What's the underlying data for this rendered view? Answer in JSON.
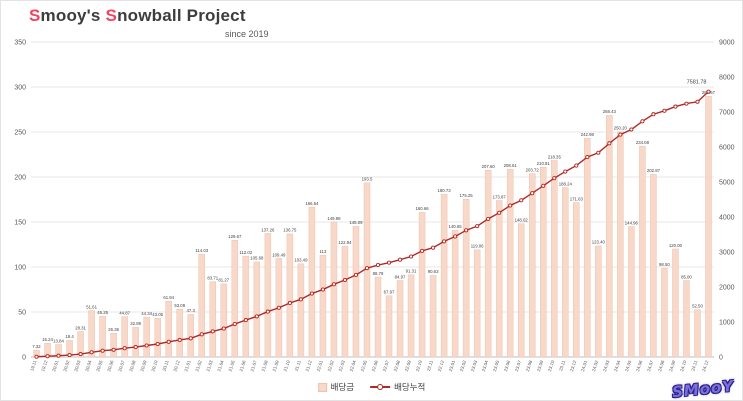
{
  "header": {
    "title_accent_1": "S",
    "title_rest_1": "mooy's ",
    "title_accent_2": "S",
    "title_rest_2": "nowball Project",
    "subtitle": "since 2019"
  },
  "legend": {
    "bar_label": "배당금",
    "line_label": "배당누적"
  },
  "watermark": {
    "text": "SMooY"
  },
  "colors": {
    "bar": "#f7d8c9",
    "bar_border": "#eec3ae",
    "line": "#b02a25",
    "accent": "#f24462",
    "grid": "#e7e7e7",
    "axis_line": "#bfbfbf",
    "axis_text": "#595959",
    "bar_label_text": "#3f3f3f"
  },
  "chart_data": {
    "type": "bar",
    "combo": "bar + line (dual axis)",
    "title": "Smooy's Snowball Project",
    "subtitle": "since 2019",
    "legend_position": "bottom",
    "grid": true,
    "left_axis": {
      "min": 0,
      "max": 350,
      "step": 50,
      "series": "배당금"
    },
    "right_axis": {
      "min": 0,
      "max": 9000,
      "step": 1000,
      "series": "배당누적"
    },
    "categories": [
      "19.11",
      "19.12",
      "20.01",
      "20.02",
      "20.03",
      "20.04",
      "20.05",
      "20.06",
      "20.07",
      "20.08",
      "20.09",
      "20.10",
      "20.11",
      "20.12",
      "21.01",
      "21.02",
      "21.03",
      "21.04",
      "21.05",
      "21.06",
      "21.07",
      "21.08",
      "21.09",
      "21.10",
      "21.11",
      "21.12",
      "22.01",
      "22.02",
      "22.03",
      "22.04",
      "22.05",
      "22.06",
      "22.07",
      "22.08",
      "22.09",
      "22.10",
      "22.11",
      "22.12",
      "23.01",
      "23.02",
      "23.03",
      "23.04",
      "23.05",
      "23.06",
      "23.07",
      "23.08",
      "23.09",
      "23.10",
      "23.11",
      "23.12",
      "24.01",
      "24.02",
      "24.03",
      "24.04",
      "24.05",
      "24.06",
      "24.07",
      "24.08",
      "24.09",
      "24.10",
      "24.11",
      "24.12"
    ],
    "series": [
      {
        "name": "배당금",
        "type": "bar",
        "axis": "left",
        "values": [
          7.32,
          15.24,
          13.84,
          18.4,
          28.31,
          51.61,
          45.25,
          26.36,
          44.87,
          32.89,
          44.34,
          43.05,
          61.94,
          53.09,
          47.3,
          114.03,
          83.71,
          81.27,
          129.67,
          112.02,
          105.68,
          137.26,
          109.49,
          136.75,
          103.49,
          166.64,
          113,
          149.98,
          122.94,
          145.09,
          193.5,
          88.78,
          67.97,
          84.97,
          91.31,
          160.66,
          90.63,
          180.73,
          140.65,
          175.25,
          119.06,
          207.6,
          173.87,
          208.61,
          148.02,
          203.72,
          210.81,
          218.35,
          188.24,
          171.63,
          242.98,
          123.4,
          268.43,
          250.2,
          144.96,
          234.08,
          202.87,
          98.5,
          120,
          85,
          52.5,
          289.67
        ],
        "labels": [
          "7.32",
          "15.24",
          "13.84",
          "18.4",
          "28.31",
          "51.61",
          "45.25",
          "26.36",
          "44.87",
          "32.89",
          "44.34",
          "43.05",
          "61.94",
          "53.09",
          "47.3",
          "114.03",
          "83.71",
          "81.27",
          "129.67",
          "112.02",
          "105.68",
          "137.26",
          "109.49",
          "136.75",
          "103.49",
          "166.64",
          "113",
          "149.98",
          "122.94",
          "145.09",
          "193.5",
          "88.78",
          "67.97",
          "84.97",
          "91.31",
          "160.66",
          "90.63",
          "180.73",
          "140.65",
          "175.25",
          "119.06",
          "207.60",
          "173.87",
          "208.61",
          "148.02",
          "203.72",
          "210.81",
          "218.35",
          "188.24",
          "171.63",
          "242.98",
          "123.40",
          "268.43",
          "250.20",
          "144.96",
          "234.08",
          "202.87",
          "98.50",
          "120.00",
          "85.00",
          "52.50",
          "289.67"
        ]
      },
      {
        "name": "배당누적",
        "type": "line",
        "axis": "right",
        "values": [
          7.32,
          22.56,
          36.4,
          54.8,
          83.11,
          134.72,
          179.97,
          206.33,
          251.2,
          284.09,
          328.43,
          371.48,
          433.42,
          486.51,
          533.81,
          647.84,
          731.55,
          812.82,
          942.49,
          1054.51,
          1160.19,
          1297.45,
          1406.94,
          1543.69,
          1647.18,
          1813.82,
          1926.82,
          2076.8,
          2199.74,
          2344.83,
          2538.33,
          2627.11,
          2695.08,
          2780.05,
          2871.36,
          3032.02,
          3122.65,
          3303.38,
          3444.03,
          3619.28,
          3738.34,
          3945.94,
          4119.81,
          4328.42,
          4476.44,
          4680.16,
          4890.97,
          5109.32,
          5297.56,
          5469.19,
          5712.17,
          5835.57,
          6104.0,
          6354.2,
          6499.16,
          6733.24,
          6936.11,
          7034.61,
          7154.61,
          7239.61,
          7292.11,
          7581.78
        ]
      }
    ],
    "final_cumulative_label": "7581.78"
  }
}
